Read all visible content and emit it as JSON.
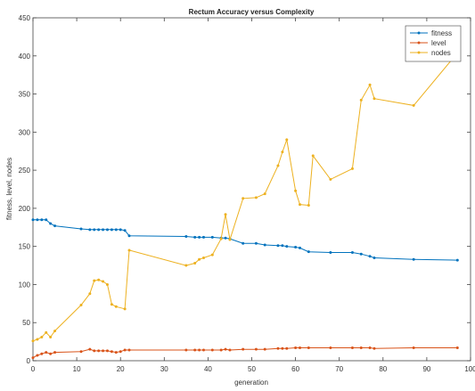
{
  "chart_data": {
    "type": "line",
    "title": "Rectum Accuracy versus Complexity",
    "xlabel": "generation",
    "ylabel": "fitness, level, nodes",
    "xlim": [
      0,
      100
    ],
    "ylim": [
      0,
      450
    ],
    "xticks": [
      "0",
      "10",
      "20",
      "30",
      "40",
      "50",
      "60",
      "70",
      "80",
      "90",
      "100"
    ],
    "yticks": [
      "0",
      "50",
      "100",
      "150",
      "200",
      "250",
      "300",
      "350",
      "400",
      "450"
    ],
    "legend_position": "top-right",
    "grid": false,
    "series": [
      {
        "name": "fitness",
        "color": "#0072BD",
        "points": [
          [
            0,
            185
          ],
          [
            1,
            185
          ],
          [
            2,
            185
          ],
          [
            3,
            185
          ],
          [
            4,
            180
          ],
          [
            5,
            177
          ],
          [
            11,
            173
          ],
          [
            13,
            172
          ],
          [
            14,
            172
          ],
          [
            15,
            172
          ],
          [
            16,
            172
          ],
          [
            17,
            172
          ],
          [
            18,
            172
          ],
          [
            19,
            172
          ],
          [
            20,
            172
          ],
          [
            21,
            171
          ],
          [
            22,
            164
          ],
          [
            35,
            163
          ],
          [
            37,
            162
          ],
          [
            38,
            162
          ],
          [
            39,
            162
          ],
          [
            41,
            162
          ],
          [
            43,
            161
          ],
          [
            44,
            161
          ],
          [
            45,
            160
          ],
          [
            48,
            154
          ],
          [
            51,
            154
          ],
          [
            53,
            152
          ],
          [
            56,
            151
          ],
          [
            57,
            151
          ],
          [
            58,
            150
          ],
          [
            60,
            149
          ],
          [
            61,
            148
          ],
          [
            63,
            143
          ],
          [
            68,
            142
          ],
          [
            73,
            142
          ],
          [
            75,
            140
          ],
          [
            77,
            137
          ],
          [
            78,
            135
          ],
          [
            87,
            133
          ],
          [
            97,
            132
          ]
        ]
      },
      {
        "name": "level",
        "color": "#D95319",
        "points": [
          [
            0,
            4
          ],
          [
            1,
            7
          ],
          [
            2,
            9
          ],
          [
            3,
            11
          ],
          [
            4,
            9
          ],
          [
            5,
            11
          ],
          [
            11,
            12
          ],
          [
            13,
            15
          ],
          [
            14,
            13
          ],
          [
            15,
            13
          ],
          [
            16,
            13
          ],
          [
            17,
            13
          ],
          [
            18,
            12
          ],
          [
            19,
            11
          ],
          [
            20,
            12
          ],
          [
            21,
            14
          ],
          [
            22,
            14
          ],
          [
            35,
            14
          ],
          [
            37,
            14
          ],
          [
            38,
            14
          ],
          [
            39,
            14
          ],
          [
            41,
            14
          ],
          [
            43,
            14
          ],
          [
            44,
            15
          ],
          [
            45,
            14
          ],
          [
            48,
            15
          ],
          [
            51,
            15
          ],
          [
            53,
            15
          ],
          [
            56,
            16
          ],
          [
            57,
            16
          ],
          [
            58,
            16
          ],
          [
            60,
            17
          ],
          [
            61,
            17
          ],
          [
            63,
            17
          ],
          [
            68,
            17
          ],
          [
            73,
            17
          ],
          [
            75,
            17
          ],
          [
            77,
            17
          ],
          [
            78,
            16
          ],
          [
            87,
            17
          ],
          [
            97,
            17
          ]
        ]
      },
      {
        "name": "nodes",
        "color": "#EDB120",
        "points": [
          [
            0,
            26
          ],
          [
            1,
            28
          ],
          [
            2,
            31
          ],
          [
            3,
            37
          ],
          [
            4,
            31
          ],
          [
            5,
            39
          ],
          [
            11,
            73
          ],
          [
            13,
            88
          ],
          [
            14,
            105
          ],
          [
            15,
            106
          ],
          [
            16,
            104
          ],
          [
            17,
            100
          ],
          [
            18,
            74
          ],
          [
            19,
            71
          ],
          [
            21,
            68
          ],
          [
            22,
            145
          ],
          [
            35,
            125
          ],
          [
            37,
            128
          ],
          [
            38,
            133
          ],
          [
            39,
            135
          ],
          [
            41,
            139
          ],
          [
            43,
            160
          ],
          [
            44,
            192
          ],
          [
            45,
            159
          ],
          [
            48,
            213
          ],
          [
            51,
            214
          ],
          [
            53,
            219
          ],
          [
            56,
            256
          ],
          [
            57,
            274
          ],
          [
            58,
            290
          ],
          [
            60,
            223
          ],
          [
            61,
            205
          ],
          [
            63,
            204
          ],
          [
            64,
            269
          ],
          [
            68,
            238
          ],
          [
            73,
            252
          ],
          [
            75,
            342
          ],
          [
            77,
            362
          ],
          [
            78,
            344
          ],
          [
            87,
            335
          ],
          [
            97,
            404
          ]
        ]
      }
    ]
  }
}
